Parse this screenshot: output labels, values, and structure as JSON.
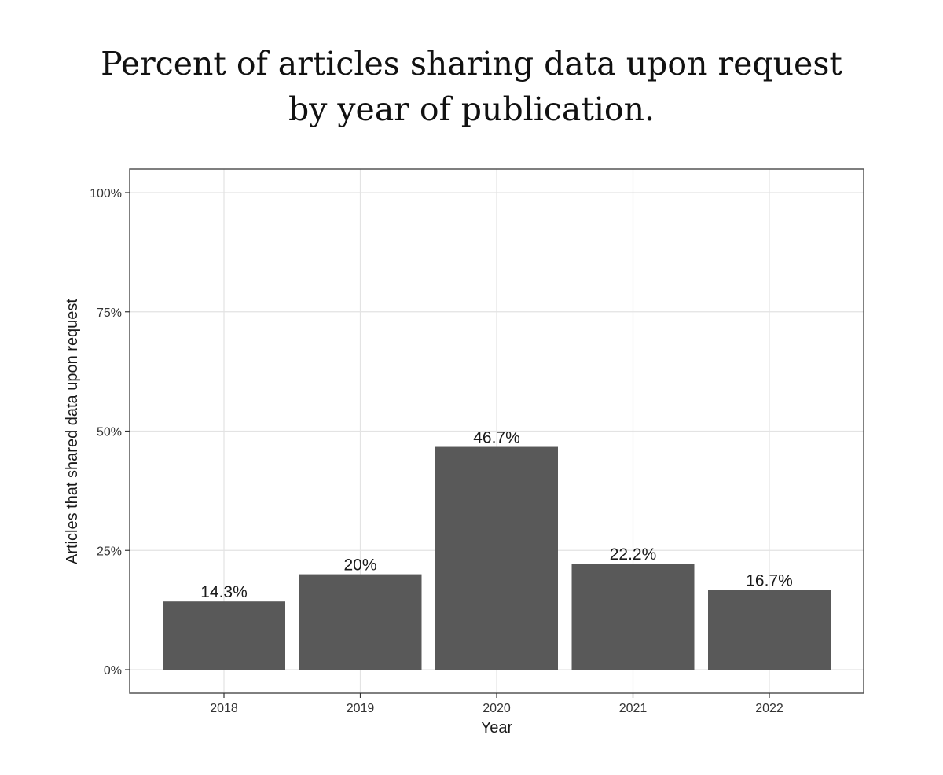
{
  "chart_data": {
    "type": "bar",
    "title_lines": [
      "Percent of articles sharing data upon request",
      "by year of publication."
    ],
    "categories": [
      "2018",
      "2019",
      "2020",
      "2021",
      "2022"
    ],
    "values": [
      14.3,
      20,
      46.7,
      22.2,
      16.7
    ],
    "data_labels": [
      "14.3%",
      "20%",
      "46.7%",
      "22.2%",
      "16.7%"
    ],
    "xlabel": "Year",
    "ylabel": "Articles that shared data upon request",
    "ylim": [
      0,
      100
    ],
    "yticks": [
      0,
      25,
      50,
      75,
      100
    ],
    "ytick_labels": [
      "0%",
      "25%",
      "50%",
      "75%",
      "100%"
    ],
    "grid": true,
    "bar_color": "#595959",
    "grid_color": "#e3e3e3",
    "frame_color": "#555555"
  }
}
